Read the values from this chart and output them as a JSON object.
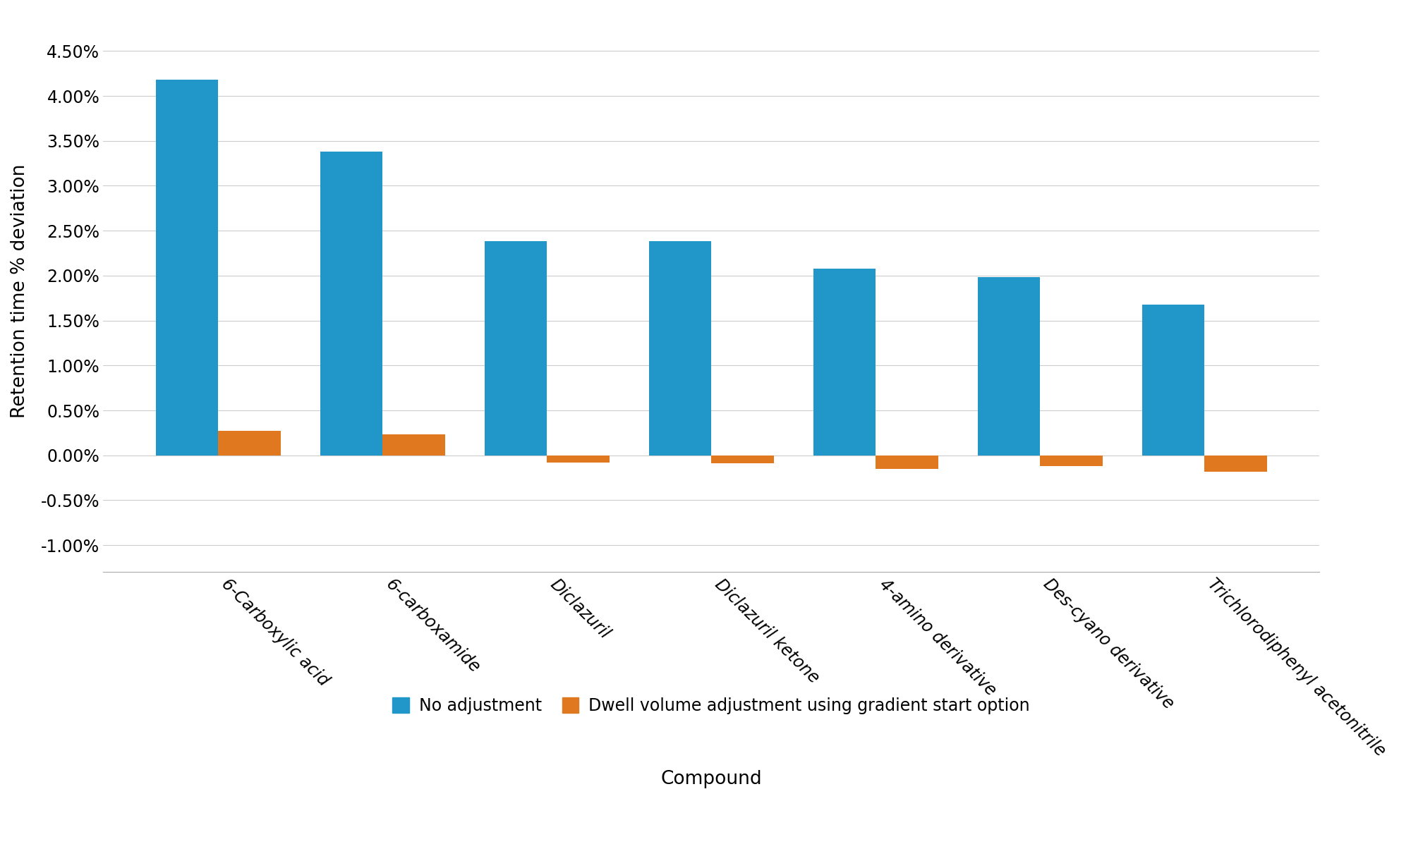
{
  "categories": [
    "6-Carboxylic acid",
    "6-carboxamide",
    "Diclazuril",
    "Diclazuril ketone",
    "4-amino derivative",
    "Des-cyano derivative",
    "Trichlorodiphenyl acetonitrile"
  ],
  "no_adjustment": [
    0.0418,
    0.0338,
    0.0238,
    0.0238,
    0.0208,
    0.0198,
    0.0168
  ],
  "dwell_adjustment": [
    0.0027,
    0.0023,
    -0.0008,
    -0.0009,
    -0.0015,
    -0.0012,
    -0.0018
  ],
  "blue_color": "#2196C8",
  "orange_color": "#E07820",
  "ylabel": "Retention time % deviation",
  "xlabel": "Compound",
  "ylim_min": -0.013,
  "ylim_max": 0.0495,
  "yticks": [
    -0.01,
    -0.005,
    0.0,
    0.005,
    0.01,
    0.015,
    0.02,
    0.025,
    0.03,
    0.035,
    0.04,
    0.045
  ],
  "ytick_labels": [
    "-1.00%",
    "-0.50%",
    "0.00%",
    "0.50%",
    "1.00%",
    "1.50%",
    "2.00%",
    "2.50%",
    "3.00%",
    "3.50%",
    "4.00%",
    "4.50%"
  ],
  "legend_no_adj": "No adjustment",
  "legend_dwell_adj": "Dwell volume adjustment using gradient start option",
  "bar_width": 0.38,
  "background_color": "#ffffff",
  "grid_color": "#CCCCCC"
}
